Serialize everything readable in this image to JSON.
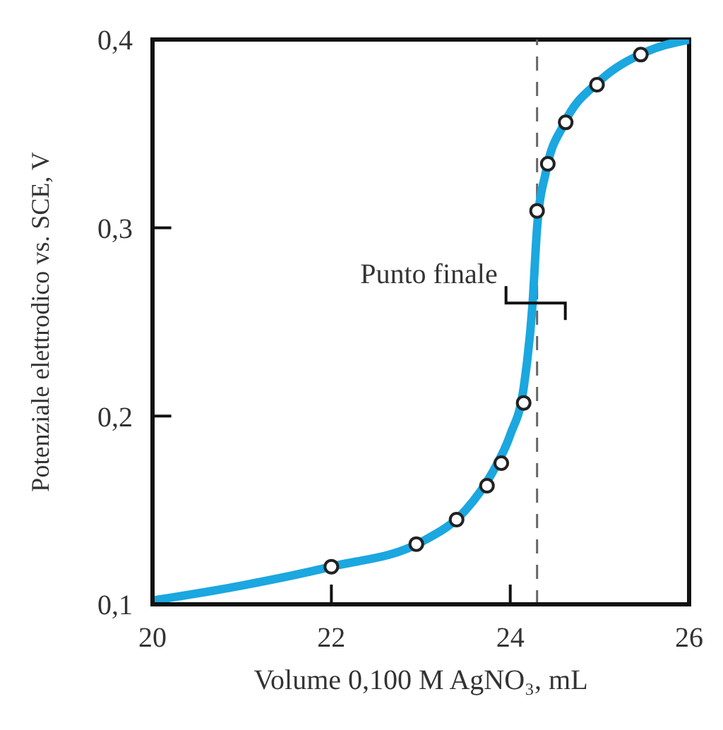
{
  "chart_data": {
    "type": "line",
    "xlabel": "Volume 0,100 M AgNO₃, mL",
    "ylabel": "Potenziale elettrodico vs. SCE, V",
    "xlim": [
      20,
      26
    ],
    "xticks": [
      20,
      22,
      24,
      26
    ],
    "ylim": [
      0.1,
      0.4
    ],
    "yticks": [
      {
        "value": 0.1,
        "label": "0,1"
      },
      {
        "value": 0.2,
        "label": "0,2"
      },
      {
        "value": 0.3,
        "label": "0,3"
      },
      {
        "value": 0.4,
        "label": "0,4"
      }
    ],
    "series": [
      {
        "color": "#1ba7e0",
        "marker": "none",
        "x": [
          20,
          21,
          22,
          23,
          23.5,
          23.8,
          24,
          24.15,
          24.25,
          24.3,
          24.4,
          24.6,
          25,
          25.5,
          26
        ],
        "values": [
          0.102,
          0.11,
          0.12,
          0.133,
          0.15,
          0.17,
          0.19,
          0.215,
          0.26,
          0.3,
          0.33,
          0.355,
          0.378,
          0.393,
          0.4
        ]
      },
      {
        "type": "scatter",
        "color": "#222222",
        "marker": "circle",
        "x": [
          22,
          22.95,
          23.4,
          23.74,
          23.9,
          24.15,
          24.3,
          24.42,
          24.62,
          24.97,
          25.46
        ],
        "values": [
          0.12,
          0.132,
          0.145,
          0.163,
          0.175,
          0.207,
          0.309,
          0.334,
          0.356,
          0.376,
          0.392
        ]
      }
    ],
    "ref_lines": [
      {
        "axis": "x",
        "value": 24.3,
        "line_style": "dashed",
        "color": "#666666"
      }
    ],
    "annotations": [
      {
        "text": "Punto finale",
        "x": 24.3,
        "y": 0.26
      }
    ]
  }
}
